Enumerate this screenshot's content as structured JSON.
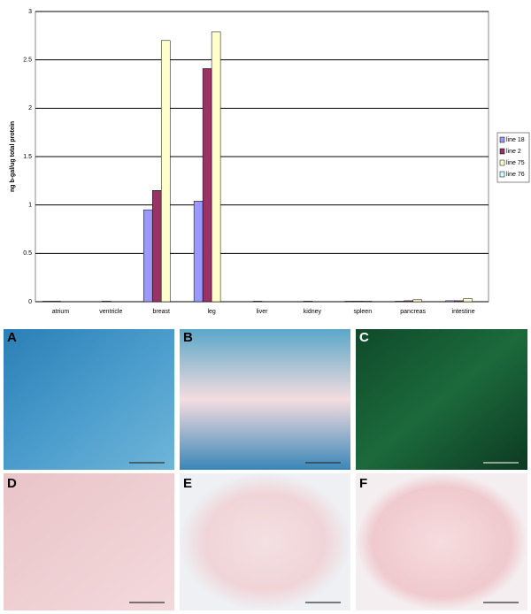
{
  "chart_data": {
    "type": "bar",
    "y_label": "ng b-gal/ug total protein",
    "categories": [
      "atrium",
      "ventricle",
      "breast",
      "leg",
      "liver",
      "kidney",
      "spleen",
      "pancreas",
      "intestine"
    ],
    "series": [
      {
        "name": "line 18",
        "color": "#9999ff",
        "values": [
          0.005,
          0,
          0.95,
          1.04,
          0,
          0,
          0.005,
          0.005,
          0.01
        ]
      },
      {
        "name": "line 2",
        "color": "#993366",
        "values": [
          0.005,
          0.005,
          1.15,
          2.41,
          0.005,
          0.005,
          0.005,
          0.01,
          0.01
        ]
      },
      {
        "name": "line 75",
        "color": "#ffffcc",
        "values": [
          0,
          0,
          2.7,
          2.79,
          0,
          0,
          0.005,
          0.02,
          0.03
        ]
      },
      {
        "name": "line 76",
        "color": "#ccffff",
        "values": [
          0,
          0,
          0,
          0,
          0,
          0,
          0,
          0,
          0
        ]
      }
    ],
    "ylim": [
      0,
      3
    ],
    "yticks": [
      0,
      0.5,
      1,
      1.5,
      2,
      2.5,
      3
    ],
    "grid": true,
    "legend": "right"
  },
  "panels": [
    {
      "label": "A"
    },
    {
      "label": "B"
    },
    {
      "label": "C"
    },
    {
      "label": "D"
    },
    {
      "label": "E"
    },
    {
      "label": "F"
    }
  ]
}
